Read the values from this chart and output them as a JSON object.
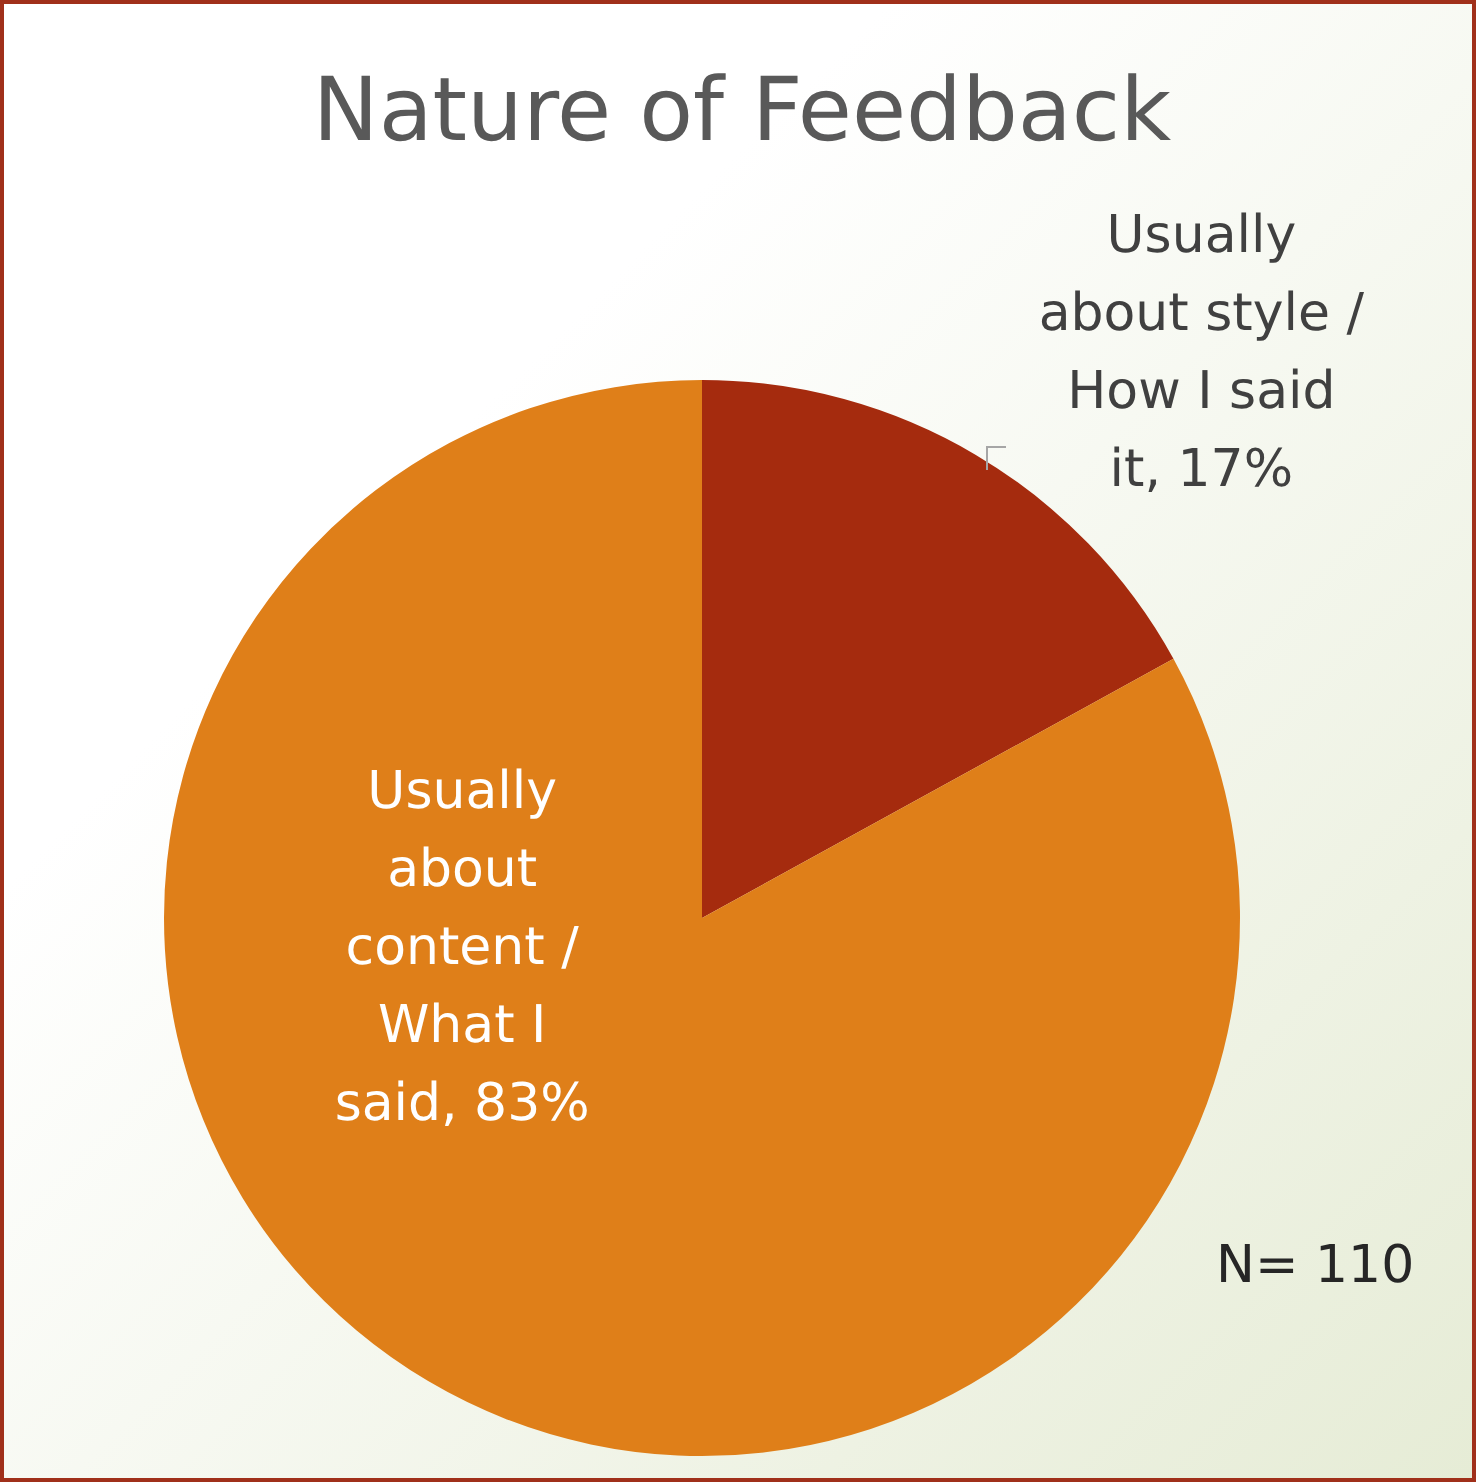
{
  "chart_data": {
    "type": "pie",
    "title": "Nature of Feedback",
    "categories": [
      "Usually about style / How I said it",
      "Usually about content / What I said"
    ],
    "values": [
      17,
      83
    ],
    "colors": [
      "#a52b0e",
      "#df7f19"
    ],
    "value_labels": [
      "17%",
      "83%"
    ],
    "legend": false,
    "annotations": [
      "N= 110"
    ]
  }
}
